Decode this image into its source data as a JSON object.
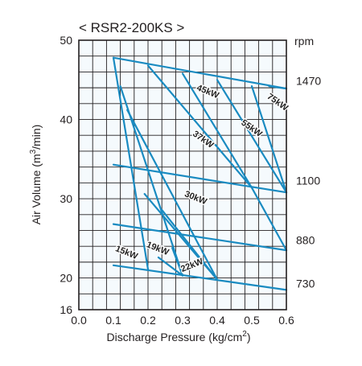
{
  "chart_data": {
    "type": "line",
    "title": "< RSR2-200KS >",
    "xlabel": "Discharge Pressure (kg/cm",
    "xlabel_sup": "2",
    "xlabel_end": ")",
    "ylabel": "Air Volume (m",
    "ylabel_sup": "3",
    "ylabel_end": "/min)",
    "right_unit": "rpm",
    "xlim": [
      0.0,
      0.6
    ],
    "ylim": [
      16,
      50
    ],
    "x_ticks": [
      "0.0",
      "0.1",
      "0.2",
      "0.3",
      "0.4",
      "0.5",
      "0.6"
    ],
    "y_ticks": [
      {
        "value": 16,
        "label": "16"
      },
      {
        "value": 20,
        "label": "20"
      },
      {
        "value": 30,
        "label": "30"
      },
      {
        "value": 40,
        "label": "40"
      },
      {
        "value": 50,
        "label": "50"
      }
    ],
    "grid": true,
    "plot_bg": "#f5fafd",
    "line_color": "#1a8bc1",
    "rpm_curves": [
      {
        "rpm": "1470",
        "label_y": 44.9,
        "points": [
          [
            0.1,
            47.8
          ],
          [
            0.6,
            43.9
          ]
        ]
      },
      {
        "rpm": "1100",
        "label_y": 32.3,
        "points": [
          [
            0.1,
            34.3
          ],
          [
            0.6,
            30.8
          ]
        ]
      },
      {
        "rpm": "880",
        "label_y": 24.8,
        "points": [
          [
            0.1,
            26.8
          ],
          [
            0.6,
            23.5
          ]
        ]
      },
      {
        "rpm": "730",
        "label_y": 19.3,
        "points": [
          [
            0.1,
            21.6
          ],
          [
            0.6,
            18.5
          ]
        ]
      }
    ],
    "power_lines": [
      {
        "label": "15kW",
        "points": [
          [
            0.1,
            47.8
          ],
          [
            0.2,
            21.1
          ]
        ]
      },
      {
        "label": "19kW",
        "points": [
          [
            0.12,
            44.2
          ],
          [
            0.3,
            20.3
          ]
        ]
      },
      {
        "label": "22kW",
        "points": [
          [
            0.14,
            41.2
          ],
          [
            0.4,
            19.8
          ]
        ]
      },
      {
        "label": "30kW",
        "points": [
          [
            0.2,
            46.8
          ],
          [
            0.5,
            31.4
          ]
        ],
        "points2": [
          [
            0.5,
            31.4
          ],
          [
            0.6,
            23.5
          ]
        ]
      },
      {
        "label": "37kW",
        "points": [
          [
            0.3,
            45.8
          ],
          [
            0.5,
            31.4
          ]
        ]
      },
      {
        "label": "45kW",
        "points": [
          [
            0.4,
            45.0
          ],
          [
            0.6,
            30.8
          ]
        ]
      },
      {
        "label": "55kW",
        "points": [
          [
            0.5,
            44.2
          ],
          [
            0.6,
            30.8
          ]
        ]
      },
      {
        "label": "75kW",
        "points": [
          [
            0.55,
            44.2
          ],
          [
            0.6,
            43.9
          ]
        ]
      }
    ],
    "extra_segments": [
      {
        "points": [
          [
            0.24,
            28.6
          ],
          [
            0.4,
            19.8
          ]
        ]
      },
      {
        "points": [
          [
            0.23,
            22.6
          ],
          [
            0.3,
            20.3
          ]
        ]
      },
      {
        "points": [
          [
            0.19,
            30.6
          ],
          [
            0.4,
            19.8
          ]
        ]
      },
      {
        "points": [
          [
            0.27,
            23.8
          ],
          [
            0.3,
            20.3
          ]
        ]
      }
    ],
    "kw_labels": [
      {
        "text": "15kW",
        "x": 0.135,
        "y": 22.9,
        "angle": 22
      },
      {
        "text": "19kW",
        "x": 0.225,
        "y": 23.4,
        "angle": 22
      },
      {
        "text": "22kW",
        "x": 0.33,
        "y": 21.3,
        "angle": -22
      },
      {
        "text": "30kW",
        "x": 0.335,
        "y": 29.8,
        "angle": 22
      },
      {
        "text": "37kW",
        "x": 0.355,
        "y": 37.2,
        "angle": 35
      },
      {
        "text": "45kW",
        "x": 0.37,
        "y": 43.2,
        "angle": 22
      },
      {
        "text": "55kW",
        "x": 0.495,
        "y": 38.6,
        "angle": 35
      },
      {
        "text": "75kW",
        "x": 0.57,
        "y": 41.9,
        "angle": 35
      }
    ]
  }
}
